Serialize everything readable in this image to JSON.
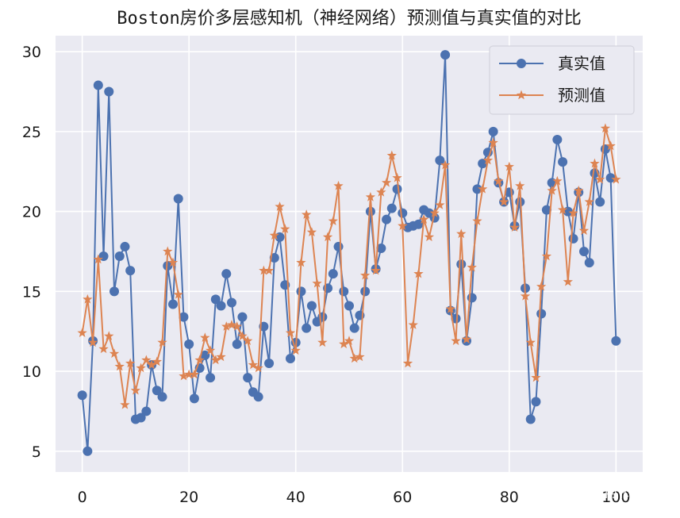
{
  "chart_data": {
    "type": "line",
    "title": "Boston房价多层感知机（神经网络）预测值与真实值的对比",
    "xlabel": "",
    "ylabel": "",
    "xlim": [
      -5,
      105
    ],
    "ylim": [
      3.7,
      31.0
    ],
    "xticks": [
      0,
      20,
      40,
      60,
      80,
      100
    ],
    "yticks": [
      5,
      10,
      15,
      20,
      25,
      30
    ],
    "grid": true,
    "legend_position": "top-right",
    "series": [
      {
        "name": "真实值",
        "color": "#4c72b0",
        "marker": "circle",
        "x": [
          0,
          1,
          2,
          3,
          4,
          5,
          6,
          7,
          8,
          9,
          10,
          11,
          12,
          13,
          14,
          15,
          16,
          17,
          18,
          19,
          20,
          21,
          22,
          23,
          24,
          25,
          26,
          27,
          28,
          29,
          30,
          31,
          32,
          33,
          34,
          35,
          36,
          37,
          38,
          39,
          40,
          41,
          42,
          43,
          44,
          45,
          46,
          47,
          48,
          49,
          50,
          51,
          52,
          53,
          54,
          55,
          56,
          57,
          58,
          59,
          60,
          61,
          62,
          63,
          64,
          65,
          66,
          67,
          68,
          69,
          70,
          71,
          72,
          73,
          74,
          75,
          76,
          77,
          78,
          79,
          80,
          81,
          82,
          83,
          84,
          85,
          86,
          87,
          88,
          89,
          90,
          91,
          92,
          93,
          94,
          95,
          96,
          97,
          98,
          99,
          100,
          101
        ],
        "values": [
          8.5,
          5.0,
          11.9,
          27.9,
          17.2,
          27.5,
          15.0,
          17.2,
          17.8,
          16.3,
          7.0,
          7.1,
          7.5,
          10.4,
          8.8,
          8.4,
          16.6,
          14.2,
          20.8,
          13.4,
          11.7,
          8.3,
          10.2,
          11.0,
          9.6,
          14.5,
          14.1,
          16.1,
          14.3,
          11.7,
          13.4,
          9.6,
          8.7,
          8.4,
          12.8,
          10.5,
          17.1,
          18.4,
          15.4,
          10.8,
          11.8,
          15.0,
          12.7,
          14.1,
          13.1,
          13.4,
          15.2,
          16.1,
          17.8,
          15.0,
          14.1,
          12.7,
          13.5,
          15.0,
          20.0,
          16.4,
          17.7,
          19.5,
          20.2,
          21.4,
          19.9,
          19.0,
          19.1,
          19.2,
          20.1,
          19.9,
          19.6,
          23.2,
          29.8,
          13.8,
          13.3,
          16.7,
          11.9,
          14.6,
          21.4,
          23.0,
          23.7,
          25.0,
          21.8,
          20.6,
          21.2,
          19.1,
          20.6,
          15.2,
          7.0,
          8.1,
          13.6,
          20.1,
          21.8,
          24.5,
          23.1,
          20.0,
          18.3,
          21.2,
          17.5,
          16.8,
          22.4,
          20.6,
          23.9,
          22.1,
          11.9,
          null
        ]
      },
      {
        "name": "预测值",
        "color": "#dd8452",
        "marker": "star",
        "x": [
          0,
          1,
          2,
          3,
          4,
          5,
          6,
          7,
          8,
          9,
          10,
          11,
          12,
          13,
          14,
          15,
          16,
          17,
          18,
          19,
          20,
          21,
          22,
          23,
          24,
          25,
          26,
          27,
          28,
          29,
          30,
          31,
          32,
          33,
          34,
          35,
          36,
          37,
          38,
          39,
          40,
          41,
          42,
          43,
          44,
          45,
          46,
          47,
          48,
          49,
          50,
          51,
          52,
          53,
          54,
          55,
          56,
          57,
          58,
          59,
          60,
          61,
          62,
          63,
          64,
          65,
          66,
          67,
          68,
          69,
          70,
          71,
          72,
          73,
          74,
          75,
          76,
          77,
          78,
          79,
          80,
          81,
          82,
          83,
          84,
          85,
          86,
          87,
          88,
          89,
          90,
          91,
          92,
          93,
          94,
          95,
          96,
          97,
          98,
          99,
          100,
          101
        ],
        "values": [
          12.4,
          14.5,
          11.8,
          17.0,
          11.4,
          12.2,
          11.1,
          10.3,
          7.9,
          10.5,
          8.8,
          10.2,
          10.7,
          10.4,
          10.6,
          11.8,
          17.5,
          16.8,
          14.8,
          9.7,
          9.8,
          9.8,
          10.7,
          12.1,
          11.3,
          10.7,
          10.9,
          12.8,
          12.9,
          12.8,
          12.2,
          11.9,
          10.4,
          10.2,
          16.3,
          16.3,
          18.5,
          20.3,
          18.9,
          12.4,
          11.3,
          16.8,
          19.8,
          18.7,
          15.5,
          11.8,
          18.4,
          19.4,
          21.6,
          11.7,
          11.9,
          10.8,
          10.9,
          16.0,
          20.9,
          16.3,
          21.2,
          21.8,
          23.5,
          22.1,
          19.1,
          10.5,
          12.9,
          16.1,
          19.5,
          18.4,
          19.9,
          20.4,
          22.9,
          13.9,
          11.9,
          18.6,
          12.0,
          16.5,
          19.4,
          21.4,
          23.2,
          24.3,
          21.9,
          20.6,
          22.8,
          19.0,
          21.6,
          14.7,
          11.8,
          9.6,
          15.3,
          17.2,
          21.3,
          21.9,
          20.1,
          15.6,
          19.9,
          21.3,
          18.8,
          20.6,
          23.0,
          22.0,
          25.2,
          24.1,
          22.0,
          null
        ]
      }
    ]
  },
  "watermark": "知乎 @不再依然"
}
